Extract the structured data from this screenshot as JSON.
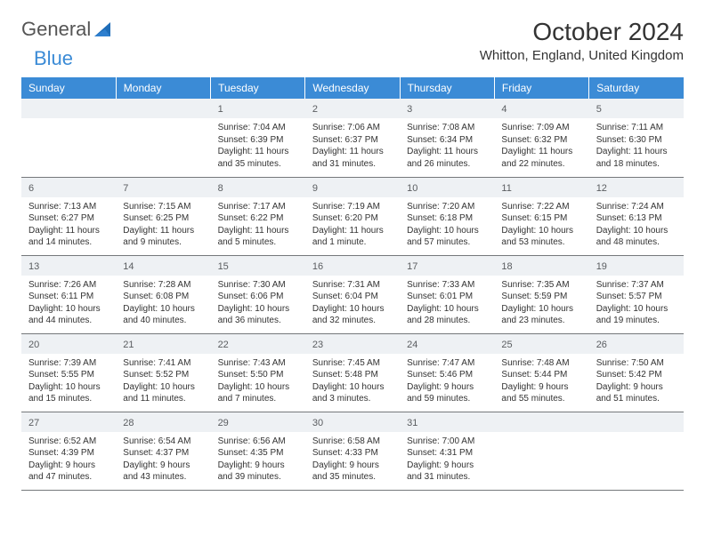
{
  "logo": {
    "word1": "General",
    "word2": "Blue"
  },
  "title": "October 2024",
  "location": "Whitton, England, United Kingdom",
  "header_bg": "#3b8bd6",
  "days_of_week": [
    "Sunday",
    "Monday",
    "Tuesday",
    "Wednesday",
    "Thursday",
    "Friday",
    "Saturday"
  ],
  "weeks": [
    [
      null,
      null,
      {
        "n": "1",
        "sunrise": "Sunrise: 7:04 AM",
        "sunset": "Sunset: 6:39 PM",
        "day1": "Daylight: 11 hours",
        "day2": "and 35 minutes."
      },
      {
        "n": "2",
        "sunrise": "Sunrise: 7:06 AM",
        "sunset": "Sunset: 6:37 PM",
        "day1": "Daylight: 11 hours",
        "day2": "and 31 minutes."
      },
      {
        "n": "3",
        "sunrise": "Sunrise: 7:08 AM",
        "sunset": "Sunset: 6:34 PM",
        "day1": "Daylight: 11 hours",
        "day2": "and 26 minutes."
      },
      {
        "n": "4",
        "sunrise": "Sunrise: 7:09 AM",
        "sunset": "Sunset: 6:32 PM",
        "day1": "Daylight: 11 hours",
        "day2": "and 22 minutes."
      },
      {
        "n": "5",
        "sunrise": "Sunrise: 7:11 AM",
        "sunset": "Sunset: 6:30 PM",
        "day1": "Daylight: 11 hours",
        "day2": "and 18 minutes."
      }
    ],
    [
      {
        "n": "6",
        "sunrise": "Sunrise: 7:13 AM",
        "sunset": "Sunset: 6:27 PM",
        "day1": "Daylight: 11 hours",
        "day2": "and 14 minutes."
      },
      {
        "n": "7",
        "sunrise": "Sunrise: 7:15 AM",
        "sunset": "Sunset: 6:25 PM",
        "day1": "Daylight: 11 hours",
        "day2": "and 9 minutes."
      },
      {
        "n": "8",
        "sunrise": "Sunrise: 7:17 AM",
        "sunset": "Sunset: 6:22 PM",
        "day1": "Daylight: 11 hours",
        "day2": "and 5 minutes."
      },
      {
        "n": "9",
        "sunrise": "Sunrise: 7:19 AM",
        "sunset": "Sunset: 6:20 PM",
        "day1": "Daylight: 11 hours",
        "day2": "and 1 minute."
      },
      {
        "n": "10",
        "sunrise": "Sunrise: 7:20 AM",
        "sunset": "Sunset: 6:18 PM",
        "day1": "Daylight: 10 hours",
        "day2": "and 57 minutes."
      },
      {
        "n": "11",
        "sunrise": "Sunrise: 7:22 AM",
        "sunset": "Sunset: 6:15 PM",
        "day1": "Daylight: 10 hours",
        "day2": "and 53 minutes."
      },
      {
        "n": "12",
        "sunrise": "Sunrise: 7:24 AM",
        "sunset": "Sunset: 6:13 PM",
        "day1": "Daylight: 10 hours",
        "day2": "and 48 minutes."
      }
    ],
    [
      {
        "n": "13",
        "sunrise": "Sunrise: 7:26 AM",
        "sunset": "Sunset: 6:11 PM",
        "day1": "Daylight: 10 hours",
        "day2": "and 44 minutes."
      },
      {
        "n": "14",
        "sunrise": "Sunrise: 7:28 AM",
        "sunset": "Sunset: 6:08 PM",
        "day1": "Daylight: 10 hours",
        "day2": "and 40 minutes."
      },
      {
        "n": "15",
        "sunrise": "Sunrise: 7:30 AM",
        "sunset": "Sunset: 6:06 PM",
        "day1": "Daylight: 10 hours",
        "day2": "and 36 minutes."
      },
      {
        "n": "16",
        "sunrise": "Sunrise: 7:31 AM",
        "sunset": "Sunset: 6:04 PM",
        "day1": "Daylight: 10 hours",
        "day2": "and 32 minutes."
      },
      {
        "n": "17",
        "sunrise": "Sunrise: 7:33 AM",
        "sunset": "Sunset: 6:01 PM",
        "day1": "Daylight: 10 hours",
        "day2": "and 28 minutes."
      },
      {
        "n": "18",
        "sunrise": "Sunrise: 7:35 AM",
        "sunset": "Sunset: 5:59 PM",
        "day1": "Daylight: 10 hours",
        "day2": "and 23 minutes."
      },
      {
        "n": "19",
        "sunrise": "Sunrise: 7:37 AM",
        "sunset": "Sunset: 5:57 PM",
        "day1": "Daylight: 10 hours",
        "day2": "and 19 minutes."
      }
    ],
    [
      {
        "n": "20",
        "sunrise": "Sunrise: 7:39 AM",
        "sunset": "Sunset: 5:55 PM",
        "day1": "Daylight: 10 hours",
        "day2": "and 15 minutes."
      },
      {
        "n": "21",
        "sunrise": "Sunrise: 7:41 AM",
        "sunset": "Sunset: 5:52 PM",
        "day1": "Daylight: 10 hours",
        "day2": "and 11 minutes."
      },
      {
        "n": "22",
        "sunrise": "Sunrise: 7:43 AM",
        "sunset": "Sunset: 5:50 PM",
        "day1": "Daylight: 10 hours",
        "day2": "and 7 minutes."
      },
      {
        "n": "23",
        "sunrise": "Sunrise: 7:45 AM",
        "sunset": "Sunset: 5:48 PM",
        "day1": "Daylight: 10 hours",
        "day2": "and 3 minutes."
      },
      {
        "n": "24",
        "sunrise": "Sunrise: 7:47 AM",
        "sunset": "Sunset: 5:46 PM",
        "day1": "Daylight: 9 hours",
        "day2": "and 59 minutes."
      },
      {
        "n": "25",
        "sunrise": "Sunrise: 7:48 AM",
        "sunset": "Sunset: 5:44 PM",
        "day1": "Daylight: 9 hours",
        "day2": "and 55 minutes."
      },
      {
        "n": "26",
        "sunrise": "Sunrise: 7:50 AM",
        "sunset": "Sunset: 5:42 PM",
        "day1": "Daylight: 9 hours",
        "day2": "and 51 minutes."
      }
    ],
    [
      {
        "n": "27",
        "sunrise": "Sunrise: 6:52 AM",
        "sunset": "Sunset: 4:39 PM",
        "day1": "Daylight: 9 hours",
        "day2": "and 47 minutes."
      },
      {
        "n": "28",
        "sunrise": "Sunrise: 6:54 AM",
        "sunset": "Sunset: 4:37 PM",
        "day1": "Daylight: 9 hours",
        "day2": "and 43 minutes."
      },
      {
        "n": "29",
        "sunrise": "Sunrise: 6:56 AM",
        "sunset": "Sunset: 4:35 PM",
        "day1": "Daylight: 9 hours",
        "day2": "and 39 minutes."
      },
      {
        "n": "30",
        "sunrise": "Sunrise: 6:58 AM",
        "sunset": "Sunset: 4:33 PM",
        "day1": "Daylight: 9 hours",
        "day2": "and 35 minutes."
      },
      {
        "n": "31",
        "sunrise": "Sunrise: 7:00 AM",
        "sunset": "Sunset: 4:31 PM",
        "day1": "Daylight: 9 hours",
        "day2": "and 31 minutes."
      },
      null,
      null
    ]
  ]
}
